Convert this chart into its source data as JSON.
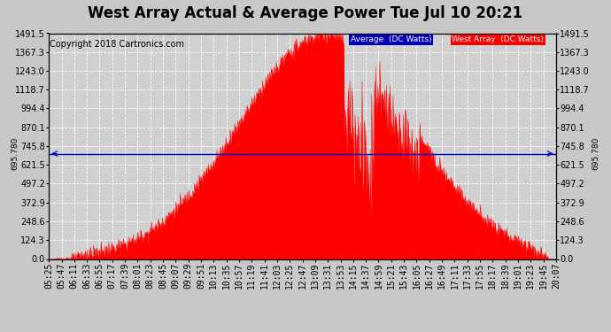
{
  "title": "West Array Actual & Average Power Tue Jul 10 20:21",
  "copyright": "Copyright 2018 Cartronics.com",
  "legend_labels": [
    "Average  (DC Watts)",
    "West Array  (DC Watts)"
  ],
  "legend_colors": [
    "#0000bb",
    "#ff0000"
  ],
  "avg_value": 695.78,
  "avg_label": "695.780",
  "y_ticks": [
    0.0,
    124.3,
    248.6,
    372.9,
    497.2,
    621.5,
    745.8,
    870.1,
    994.4,
    1118.7,
    1243.0,
    1367.3,
    1491.5
  ],
  "ylim": [
    0,
    1491.5
  ],
  "background_color": "#c8c8c8",
  "plot_bg_color": "#d0d0d0",
  "grid_color": "#ffffff",
  "fill_color": "#ff0000",
  "avg_line_color": "#0000cc",
  "title_fontsize": 12,
  "copyright_fontsize": 7,
  "tick_fontsize": 7,
  "x_tick_labels": [
    "05:25",
    "05:47",
    "06:11",
    "06:33",
    "06:55",
    "07:17",
    "07:39",
    "08:01",
    "08:23",
    "08:45",
    "09:07",
    "09:29",
    "09:51",
    "10:13",
    "10:35",
    "10:57",
    "11:19",
    "11:41",
    "12:03",
    "12:25",
    "12:47",
    "13:09",
    "13:31",
    "13:53",
    "14:15",
    "14:37",
    "14:59",
    "15:21",
    "15:43",
    "16:05",
    "16:27",
    "16:49",
    "17:11",
    "17:33",
    "17:55",
    "18:17",
    "18:39",
    "19:01",
    "19:23",
    "19:45",
    "20:07"
  ]
}
